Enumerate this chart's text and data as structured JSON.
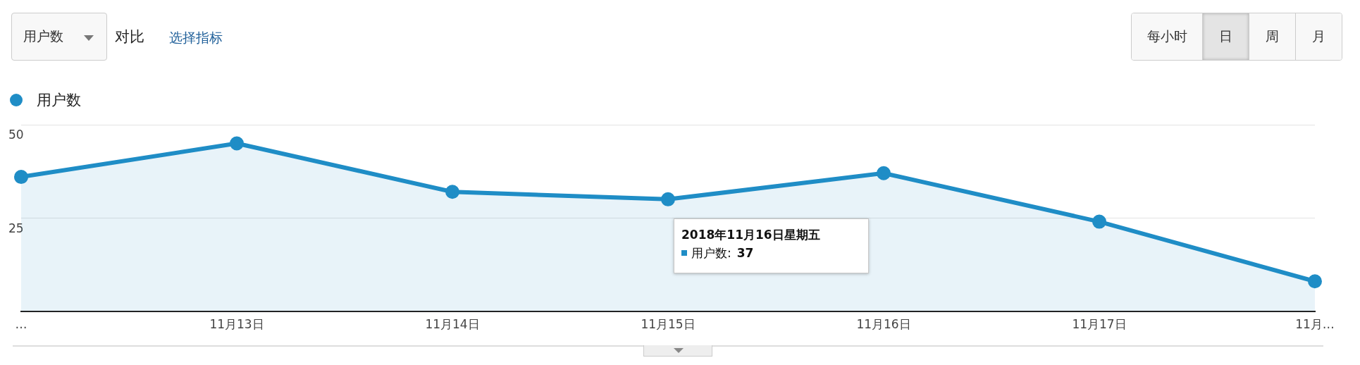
{
  "chart_data": {
    "type": "area",
    "categories": [
      "…",
      "11月13日",
      "11月14日",
      "11月15日",
      "11月16日",
      "11月17日",
      "11月…"
    ],
    "series": [
      {
        "name": "用户数",
        "color": "#1f8dc6",
        "values": [
          36,
          45,
          32,
          30,
          37,
          24,
          8
        ]
      }
    ],
    "ylim": [
      0,
      50
    ],
    "yticks": [
      25,
      50
    ],
    "grid": "y",
    "legend": "top left",
    "marker": "circle",
    "annotations": [
      "用户数",
      "对比",
      "选择指标",
      "每小时",
      "日",
      "周",
      "月",
      "2018年11月16日星期五",
      "用户数:",
      "37"
    ]
  }
}
